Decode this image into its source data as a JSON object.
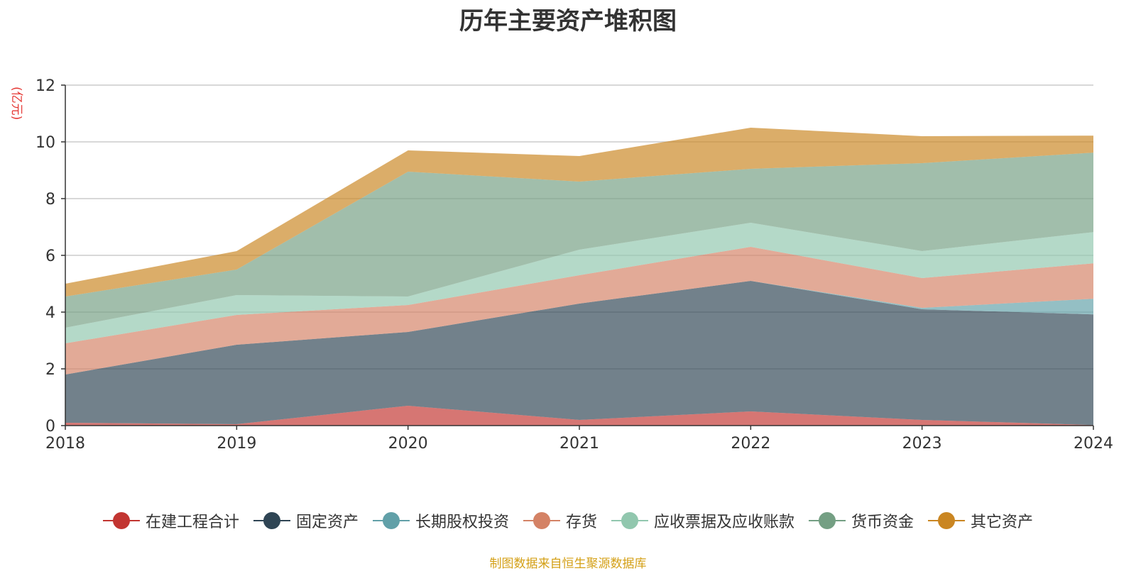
{
  "chart_data": {
    "type": "area",
    "stacked": true,
    "title": "历年主要资产堆积图",
    "ylabel": "(亿元)",
    "xlabel": "",
    "x": [
      "2018",
      "2019",
      "2020",
      "2021",
      "2022",
      "2023",
      "2024"
    ],
    "ylim": [
      0,
      12
    ],
    "yticks": [
      "0",
      "2",
      "4",
      "6",
      "8",
      "10",
      "12"
    ],
    "grid": true,
    "legend_position": "bottom",
    "series": [
      {
        "name": "在建工程合计",
        "color": "#c23531",
        "values": [
          0.1,
          0.05,
          0.7,
          0.2,
          0.5,
          0.2,
          0.02
        ]
      },
      {
        "name": "固定资产",
        "color": "#2f4554",
        "values": [
          1.7,
          2.8,
          2.6,
          4.1,
          4.6,
          3.9,
          3.9
        ]
      },
      {
        "name": "长期股权投资",
        "color": "#61a0a8",
        "values": [
          0,
          0,
          0,
          0,
          0,
          0.05,
          0.55
        ]
      },
      {
        "name": "存货",
        "color": "#d48265",
        "values": [
          1.1,
          1.05,
          0.95,
          1.0,
          1.2,
          1.05,
          1.25
        ]
      },
      {
        "name": "应收票据及应收账款",
        "color": "#91c7ae",
        "values": [
          0.55,
          0.7,
          0.3,
          0.9,
          0.85,
          0.95,
          1.1
        ]
      },
      {
        "name": "货币资金",
        "color": "#749f83",
        "values": [
          1.1,
          0.9,
          4.4,
          2.4,
          1.9,
          3.1,
          2.8
        ]
      },
      {
        "name": "其它资产",
        "color": "#ca8622",
        "values": [
          0.45,
          0.65,
          0.75,
          0.9,
          1.45,
          0.95,
          0.6
        ]
      }
    ]
  },
  "source_note": "制图数据来自恒生聚源数据库"
}
